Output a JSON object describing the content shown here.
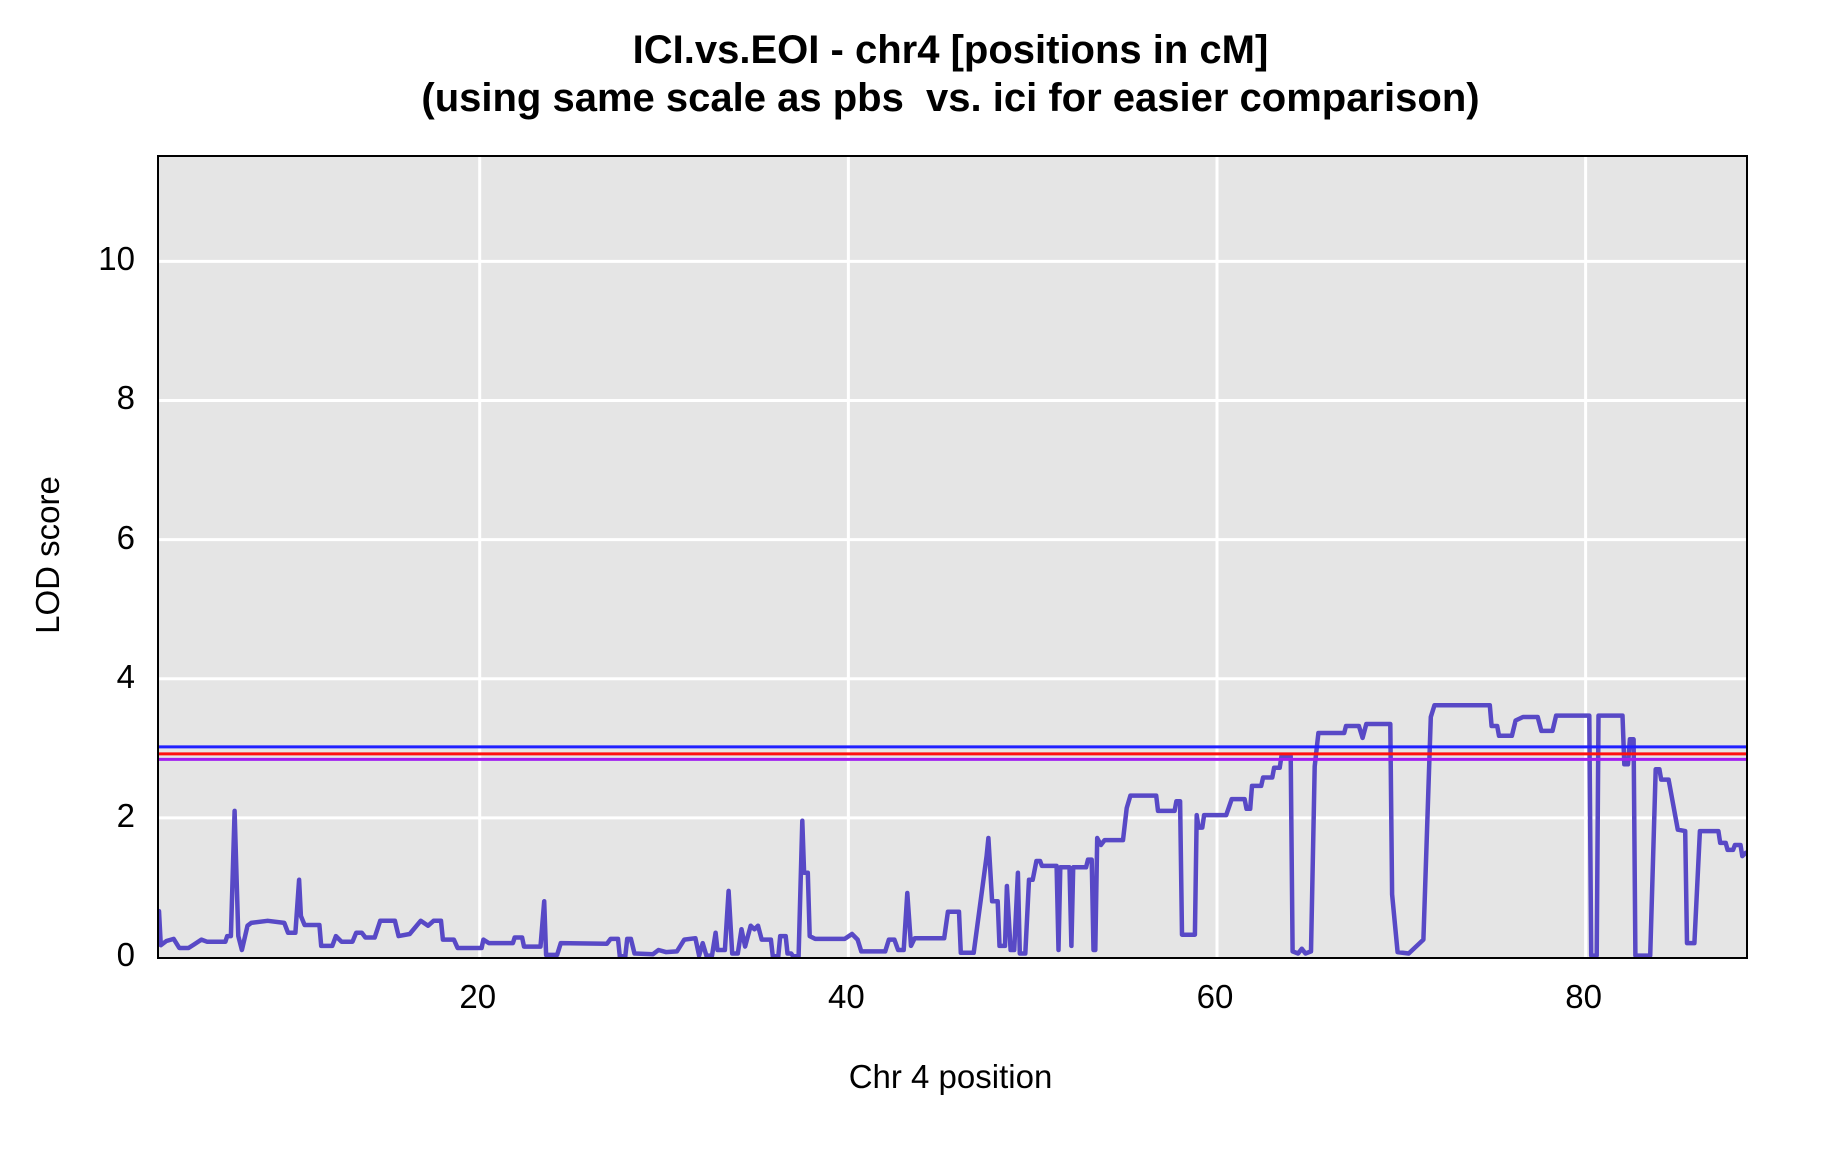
{
  "chart_data": {
    "type": "line",
    "title": "ICI.vs.EOI - chr4 [positions in cM]",
    "subtitle": "(using same scale as pbs  vs. ici for easier comparison)",
    "xlabel": "Chr 4 position",
    "ylabel": "LOD score",
    "xlim": [
      2.6,
      88.7
    ],
    "ylim": [
      0,
      11.5
    ],
    "x_ticks": [
      20,
      40,
      60,
      80
    ],
    "y_ticks": [
      0,
      2,
      4,
      6,
      8,
      10
    ],
    "grid": true,
    "legend_position": "none",
    "panel_bg": "#e5e5e5",
    "grid_color": "#ffffff",
    "thresholds": [
      {
        "name": "threshold-blue",
        "value": 3.02,
        "color": "#2020ff"
      },
      {
        "name": "threshold-red",
        "value": 2.92,
        "color": "#ff1010"
      },
      {
        "name": "threshold-purple",
        "value": 2.84,
        "color": "#a020f0"
      }
    ],
    "series": [
      {
        "name": "LOD curve",
        "color": "#5849c6",
        "width": 4.5,
        "points": [
          [
            2.6,
            0.66
          ],
          [
            2.7,
            0.17
          ],
          [
            3.0,
            0.23
          ],
          [
            3.4,
            0.26
          ],
          [
            3.7,
            0.13
          ],
          [
            4.2,
            0.13
          ],
          [
            4.5,
            0.18
          ],
          [
            4.9,
            0.25
          ],
          [
            5.2,
            0.22
          ],
          [
            6.2,
            0.22
          ],
          [
            6.3,
            0.3
          ],
          [
            6.5,
            0.3
          ],
          [
            6.7,
            2.1
          ],
          [
            6.9,
            0.3
          ],
          [
            7.1,
            0.1
          ],
          [
            7.4,
            0.45
          ],
          [
            7.6,
            0.49
          ],
          [
            8.5,
            0.52
          ],
          [
            9.4,
            0.49
          ],
          [
            9.6,
            0.35
          ],
          [
            10.0,
            0.35
          ],
          [
            10.2,
            1.11
          ],
          [
            10.3,
            0.59
          ],
          [
            10.5,
            0.46
          ],
          [
            11.3,
            0.46
          ],
          [
            11.4,
            0.16
          ],
          [
            12.0,
            0.16
          ],
          [
            12.2,
            0.3
          ],
          [
            12.5,
            0.22
          ],
          [
            13.1,
            0.22
          ],
          [
            13.3,
            0.35
          ],
          [
            13.6,
            0.35
          ],
          [
            13.8,
            0.28
          ],
          [
            14.3,
            0.28
          ],
          [
            14.6,
            0.52
          ],
          [
            15.4,
            0.52
          ],
          [
            15.6,
            0.3
          ],
          [
            16.2,
            0.33
          ],
          [
            16.8,
            0.52
          ],
          [
            17.2,
            0.45
          ],
          [
            17.5,
            0.52
          ],
          [
            17.9,
            0.52
          ],
          [
            18.0,
            0.25
          ],
          [
            18.6,
            0.25
          ],
          [
            18.8,
            0.13
          ],
          [
            20.1,
            0.13
          ],
          [
            20.2,
            0.25
          ],
          [
            20.5,
            0.2
          ],
          [
            21.8,
            0.2
          ],
          [
            21.9,
            0.28
          ],
          [
            22.3,
            0.28
          ],
          [
            22.4,
            0.15
          ],
          [
            23.3,
            0.15
          ],
          [
            23.5,
            0.8
          ],
          [
            23.6,
            0.03
          ],
          [
            24.2,
            0.03
          ],
          [
            24.4,
            0.2
          ],
          [
            26.9,
            0.19
          ],
          [
            27.1,
            0.26
          ],
          [
            27.5,
            0.26
          ],
          [
            27.6,
            0.01
          ],
          [
            27.9,
            0.01
          ],
          [
            28.0,
            0.26
          ],
          [
            28.2,
            0.26
          ],
          [
            28.4,
            0.05
          ],
          [
            29.4,
            0.04
          ],
          [
            29.7,
            0.1
          ],
          [
            30.1,
            0.07
          ],
          [
            30.7,
            0.08
          ],
          [
            31.1,
            0.25
          ],
          [
            31.7,
            0.27
          ],
          [
            31.9,
            0.02
          ],
          [
            32.1,
            0.2
          ],
          [
            32.3,
            0.02
          ],
          [
            32.6,
            0.02
          ],
          [
            32.8,
            0.35
          ],
          [
            32.9,
            0.1
          ],
          [
            33.3,
            0.1
          ],
          [
            33.5,
            0.95
          ],
          [
            33.7,
            0.05
          ],
          [
            34.0,
            0.05
          ],
          [
            34.2,
            0.4
          ],
          [
            34.4,
            0.15
          ],
          [
            34.7,
            0.45
          ],
          [
            34.9,
            0.4
          ],
          [
            35.1,
            0.45
          ],
          [
            35.3,
            0.25
          ],
          [
            35.8,
            0.25
          ],
          [
            35.9,
            0.01
          ],
          [
            36.2,
            0.01
          ],
          [
            36.3,
            0.3
          ],
          [
            36.6,
            0.3
          ],
          [
            36.7,
            0.05
          ],
          [
            36.9,
            0.05
          ],
          [
            37.0,
            0.01
          ],
          [
            37.3,
            0.01
          ],
          [
            37.5,
            1.96
          ],
          [
            37.6,
            1.21
          ],
          [
            37.8,
            1.21
          ],
          [
            37.9,
            0.3
          ],
          [
            38.2,
            0.26
          ],
          [
            39.8,
            0.26
          ],
          [
            40.2,
            0.33
          ],
          [
            40.5,
            0.25
          ],
          [
            40.7,
            0.08
          ],
          [
            42.0,
            0.08
          ],
          [
            42.2,
            0.25
          ],
          [
            42.5,
            0.25
          ],
          [
            42.7,
            0.1
          ],
          [
            43.0,
            0.1
          ],
          [
            43.2,
            0.92
          ],
          [
            43.4,
            0.16
          ],
          [
            43.6,
            0.27
          ],
          [
            45.2,
            0.27
          ],
          [
            45.4,
            0.65
          ],
          [
            46.0,
            0.65
          ],
          [
            46.1,
            0.06
          ],
          [
            46.8,
            0.06
          ],
          [
            47.5,
            1.45
          ],
          [
            47.6,
            1.71
          ],
          [
            47.8,
            0.8
          ],
          [
            48.1,
            0.8
          ],
          [
            48.2,
            0.16
          ],
          [
            48.5,
            0.16
          ],
          [
            48.6,
            1.02
          ],
          [
            48.8,
            0.1
          ],
          [
            49.0,
            0.1
          ],
          [
            49.2,
            1.21
          ],
          [
            49.3,
            0.05
          ],
          [
            49.6,
            0.05
          ],
          [
            49.8,
            1.11
          ],
          [
            50.0,
            1.11
          ],
          [
            50.2,
            1.38
          ],
          [
            50.4,
            1.38
          ],
          [
            50.5,
            1.31
          ],
          [
            51.3,
            1.31
          ],
          [
            51.4,
            0.1
          ],
          [
            51.5,
            1.29
          ],
          [
            52.0,
            1.29
          ],
          [
            52.1,
            0.16
          ],
          [
            52.2,
            1.29
          ],
          [
            52.9,
            1.29
          ],
          [
            53.0,
            1.4
          ],
          [
            53.2,
            1.4
          ],
          [
            53.3,
            0.1
          ],
          [
            53.4,
            0.1
          ],
          [
            53.5,
            1.71
          ],
          [
            53.7,
            1.61
          ],
          [
            53.9,
            1.68
          ],
          [
            54.9,
            1.68
          ],
          [
            55.1,
            2.14
          ],
          [
            55.3,
            2.32
          ],
          [
            56.7,
            2.32
          ],
          [
            56.8,
            2.1
          ],
          [
            57.7,
            2.1
          ],
          [
            57.8,
            2.24
          ],
          [
            58.0,
            2.24
          ],
          [
            58.1,
            0.32
          ],
          [
            58.8,
            0.32
          ],
          [
            58.9,
            2.04
          ],
          [
            59.0,
            1.86
          ],
          [
            59.2,
            1.86
          ],
          [
            59.3,
            2.04
          ],
          [
            60.5,
            2.04
          ],
          [
            60.8,
            2.27
          ],
          [
            61.5,
            2.27
          ],
          [
            61.6,
            2.13
          ],
          [
            61.8,
            2.13
          ],
          [
            61.9,
            2.46
          ],
          [
            62.4,
            2.46
          ],
          [
            62.5,
            2.58
          ],
          [
            63.0,
            2.58
          ],
          [
            63.1,
            2.72
          ],
          [
            63.4,
            2.72
          ],
          [
            63.5,
            2.89
          ],
          [
            64.0,
            2.89
          ],
          [
            64.1,
            0.08
          ],
          [
            64.4,
            0.05
          ],
          [
            64.6,
            0.12
          ],
          [
            64.8,
            0.05
          ],
          [
            65.1,
            0.08
          ],
          [
            65.3,
            2.74
          ],
          [
            65.5,
            3.22
          ],
          [
            66.9,
            3.22
          ],
          [
            67.0,
            3.32
          ],
          [
            67.7,
            3.32
          ],
          [
            67.9,
            3.15
          ],
          [
            68.1,
            3.35
          ],
          [
            69.4,
            3.35
          ],
          [
            69.5,
            0.9
          ],
          [
            69.8,
            0.07
          ],
          [
            70.4,
            0.05
          ],
          [
            71.2,
            0.25
          ],
          [
            71.6,
            3.45
          ],
          [
            71.8,
            3.62
          ],
          [
            74.8,
            3.62
          ],
          [
            74.9,
            3.32
          ],
          [
            75.2,
            3.32
          ],
          [
            75.3,
            3.18
          ],
          [
            76.0,
            3.18
          ],
          [
            76.2,
            3.4
          ],
          [
            76.6,
            3.45
          ],
          [
            77.4,
            3.45
          ],
          [
            77.6,
            3.25
          ],
          [
            78.2,
            3.25
          ],
          [
            78.4,
            3.47
          ],
          [
            80.2,
            3.47
          ],
          [
            80.3,
            0.02
          ],
          [
            80.6,
            0.02
          ],
          [
            80.7,
            3.47
          ],
          [
            82.0,
            3.47
          ],
          [
            82.1,
            2.77
          ],
          [
            82.3,
            2.77
          ],
          [
            82.4,
            3.13
          ],
          [
            82.6,
            3.13
          ],
          [
            82.7,
            0.02
          ],
          [
            83.5,
            0.02
          ],
          [
            83.8,
            2.7
          ],
          [
            84.0,
            2.7
          ],
          [
            84.1,
            2.55
          ],
          [
            84.5,
            2.55
          ],
          [
            85.0,
            1.83
          ],
          [
            85.4,
            1.81
          ],
          [
            85.5,
            0.2
          ],
          [
            85.9,
            0.2
          ],
          [
            86.2,
            1.81
          ],
          [
            87.2,
            1.81
          ],
          [
            87.3,
            1.64
          ],
          [
            87.6,
            1.64
          ],
          [
            87.7,
            1.54
          ],
          [
            88.0,
            1.54
          ],
          [
            88.1,
            1.61
          ],
          [
            88.4,
            1.61
          ],
          [
            88.5,
            1.45
          ],
          [
            88.7,
            1.5
          ]
        ]
      }
    ]
  }
}
